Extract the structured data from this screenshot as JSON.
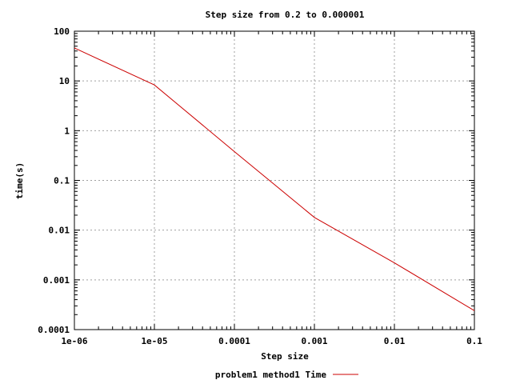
{
  "chart_data": {
    "type": "line",
    "title": "Step size from 0.2 to 0.000001",
    "xlabel": "Step size",
    "ylabel": "time(s)",
    "x_scale": "log",
    "y_scale": "log",
    "xlim": [
      1e-06,
      0.1
    ],
    "ylim": [
      0.0001,
      100
    ],
    "x_ticks": [
      "1e-06",
      "1e-05",
      "0.0001",
      "0.001",
      "0.01",
      "0.1"
    ],
    "y_ticks": [
      "0.0001",
      "0.001",
      "0.01",
      "0.1",
      "1",
      "10",
      "100"
    ],
    "grid": true,
    "legend_position": "bottom-center",
    "series": [
      {
        "name": "problem1 method1 Time",
        "color": "#cc0000",
        "x": [
          1e-06,
          1e-05,
          0.0001,
          0.001,
          0.01,
          0.1
        ],
        "y": [
          46,
          8.3,
          0.38,
          0.018,
          0.0022,
          0.00024
        ]
      }
    ]
  }
}
